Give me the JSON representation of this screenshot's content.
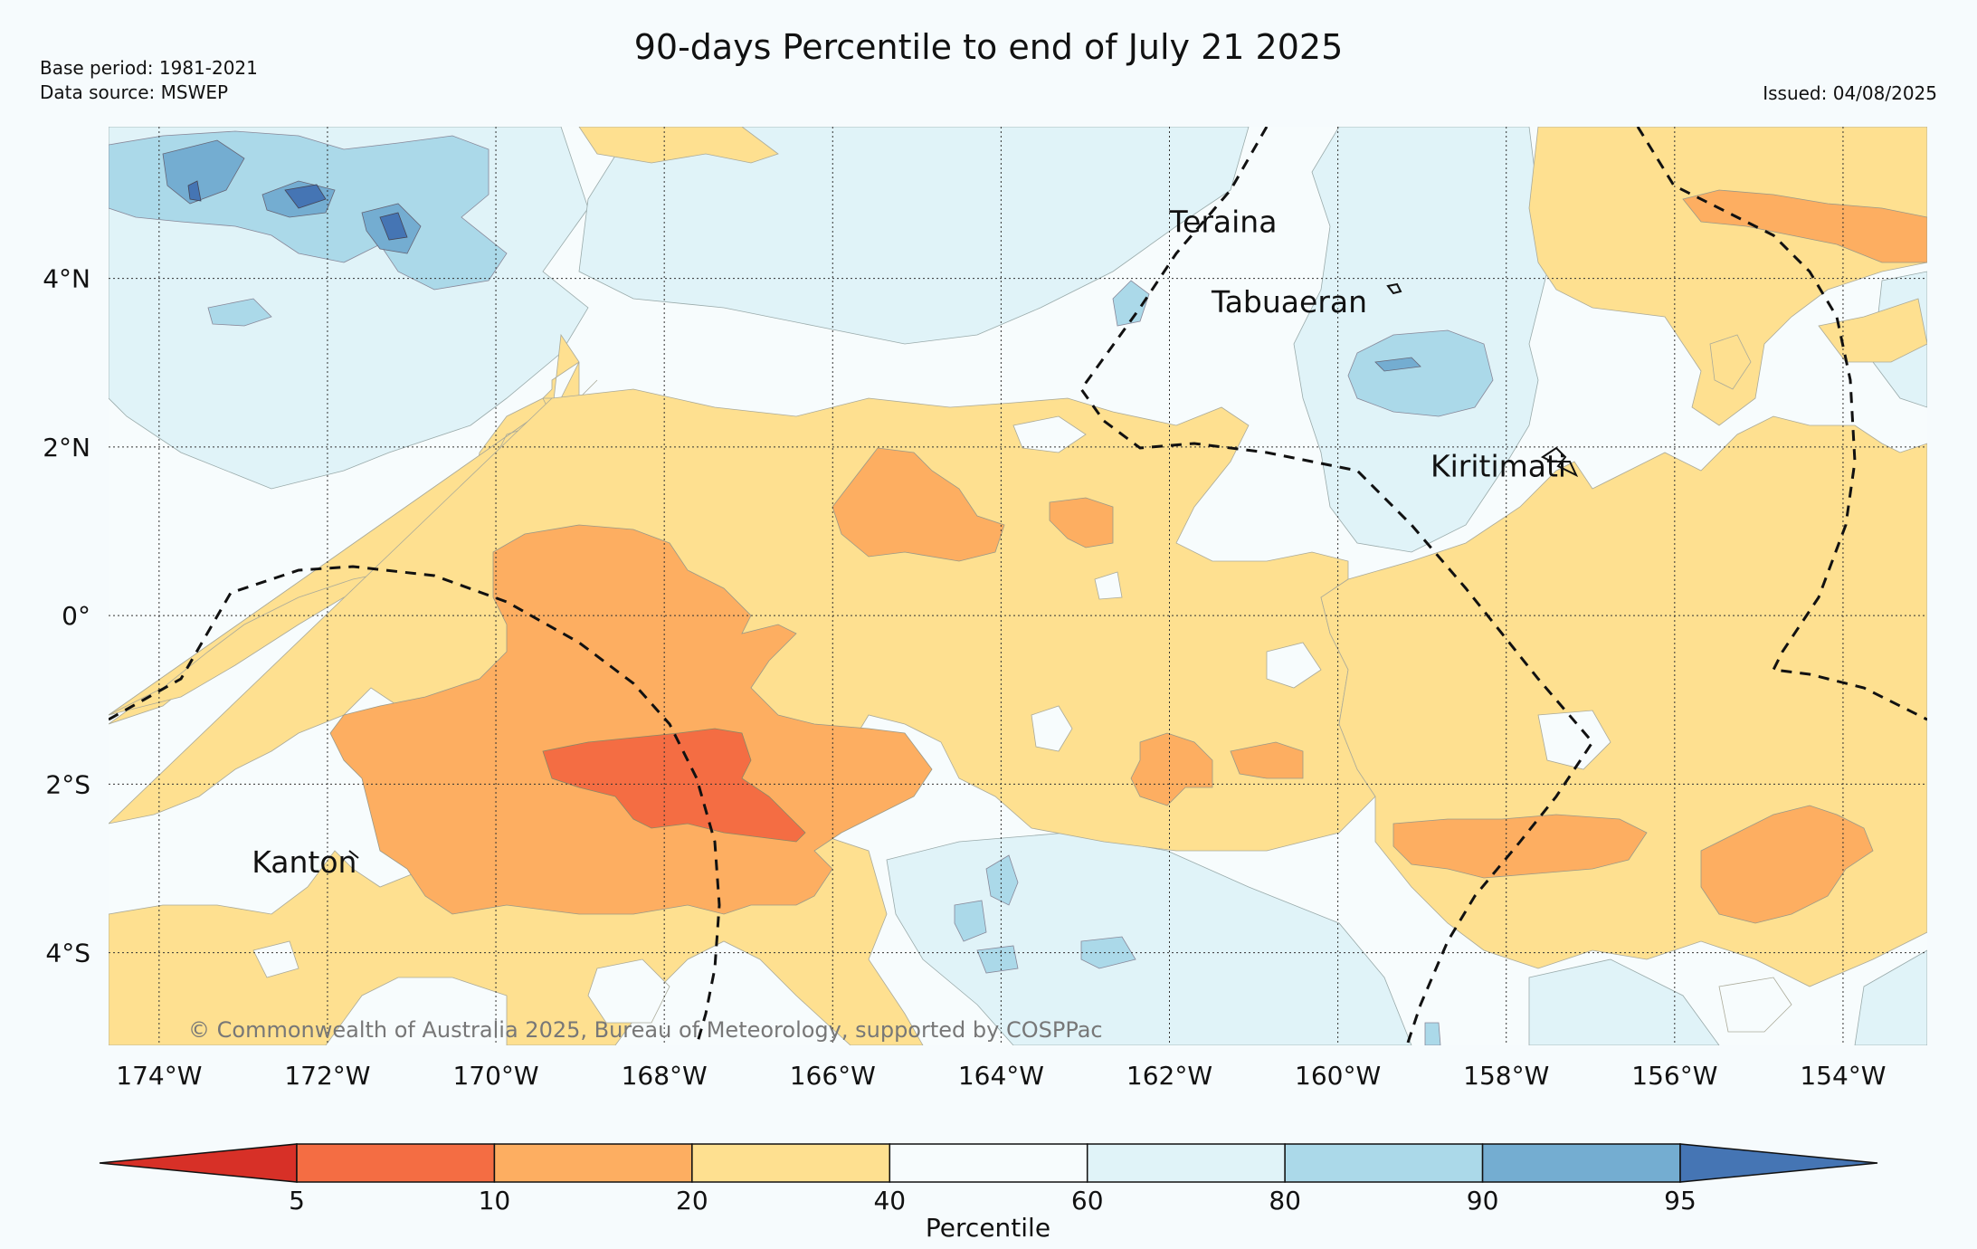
{
  "header": {
    "title": "90-days Percentile to end of July 21 2025",
    "base_period": "Base period: 1981-2021",
    "data_source": "Data source: MSWEP",
    "issued": "Issued: 04/08/2025"
  },
  "map": {
    "lon_range": [
      -174.6,
      -153
    ],
    "lat_range": [
      -5.1,
      5.8
    ],
    "lon_ticks": [
      {
        "lon": -174,
        "label": "174°W"
      },
      {
        "lon": -172,
        "label": "172°W"
      },
      {
        "lon": -170,
        "label": "170°W"
      },
      {
        "lon": -168,
        "label": "168°W"
      },
      {
        "lon": -166,
        "label": "166°W"
      },
      {
        "lon": -164,
        "label": "164°W"
      },
      {
        "lon": -162,
        "label": "162°W"
      },
      {
        "lon": -160,
        "label": "160°W"
      },
      {
        "lon": -158,
        "label": "158°W"
      },
      {
        "lon": -156,
        "label": "156°W"
      },
      {
        "lon": -154,
        "label": "154°W"
      }
    ],
    "lat_ticks": [
      {
        "lat": 4,
        "label": "4°N"
      },
      {
        "lat": 2,
        "label": "2°N"
      },
      {
        "lat": 0,
        "label": "0°"
      },
      {
        "lat": -2,
        "label": "2°S"
      },
      {
        "lat": -4,
        "label": "4°S"
      }
    ],
    "places": [
      {
        "name": "Teraina",
        "lon": -162.0,
        "lat": 4.55
      },
      {
        "name": "Tabuaeran",
        "lon": -161.5,
        "lat": 3.6
      },
      {
        "name": "Kiritimati",
        "lon": -158.9,
        "lat": 1.65
      },
      {
        "name": "Kanton",
        "lon": -172.9,
        "lat": -3.05
      }
    ],
    "copyright": "© Commonwealth of Australia 2025, Bureau of Meteorology, supported by COSPPac",
    "gridlines": true
  },
  "colorbar": {
    "label": "Percentile",
    "ticks": [
      "5",
      "10",
      "20",
      "40",
      "60",
      "80",
      "90",
      "95"
    ],
    "colors": {
      "lt5": "#d73027",
      "p5_10": "#f46d43",
      "p10_20": "#fdae61",
      "p20_40": "#fee090",
      "p40_60": "#f7fcfd",
      "p60_80": "#e0f3f8",
      "p80_90": "#abd9e9",
      "p90_95": "#74add1",
      "gt95": "#4575b4"
    }
  }
}
